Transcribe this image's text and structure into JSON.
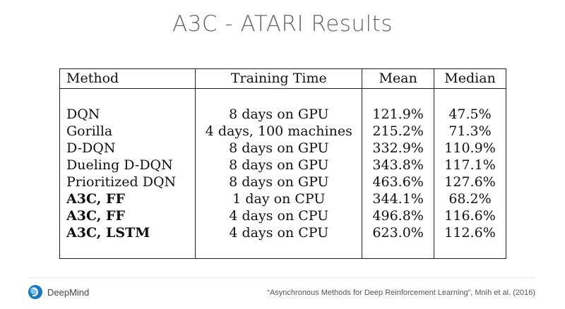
{
  "title": "A3C - ATARI Results",
  "table": {
    "headers": {
      "method": "Method",
      "training_time": "Training Time",
      "mean": "Mean",
      "median": "Median"
    },
    "rows": [
      {
        "method": "DQN",
        "training_time": "8 days on GPU",
        "mean": "121.9%",
        "median": "47.5%",
        "bold": false
      },
      {
        "method": "Gorilla",
        "training_time": "4 days, 100 machines",
        "mean": "215.2%",
        "median": "71.3%",
        "bold": false
      },
      {
        "method": "D-DQN",
        "training_time": "8 days on GPU",
        "mean": "332.9%",
        "median": "110.9%",
        "bold": false
      },
      {
        "method": "Dueling D-DQN",
        "training_time": "8 days on GPU",
        "mean": "343.8%",
        "median": "117.1%",
        "bold": false
      },
      {
        "method": "Prioritized DQN",
        "training_time": "8 days on GPU",
        "mean": "463.6%",
        "median": "127.6%",
        "bold": false
      },
      {
        "method": "A3C, FF",
        "training_time": "1 day on CPU",
        "mean": "344.1%",
        "median": "68.2%",
        "bold": true
      },
      {
        "method": "A3C, FF",
        "training_time": "4 days on CPU",
        "mean": "496.8%",
        "median": "116.6%",
        "bold": true
      },
      {
        "method": "A3C, LSTM",
        "training_time": "4 days on CPU",
        "mean": "623.0%",
        "median": "112.6%",
        "bold": true
      }
    ]
  },
  "footer": {
    "logo_text": "DeepMind",
    "logo_icon": "deepmind-logo-icon",
    "citation": "“Asynchronous Methods for Deep Reinforcement Learning”, Mnih et al. (2016)"
  }
}
